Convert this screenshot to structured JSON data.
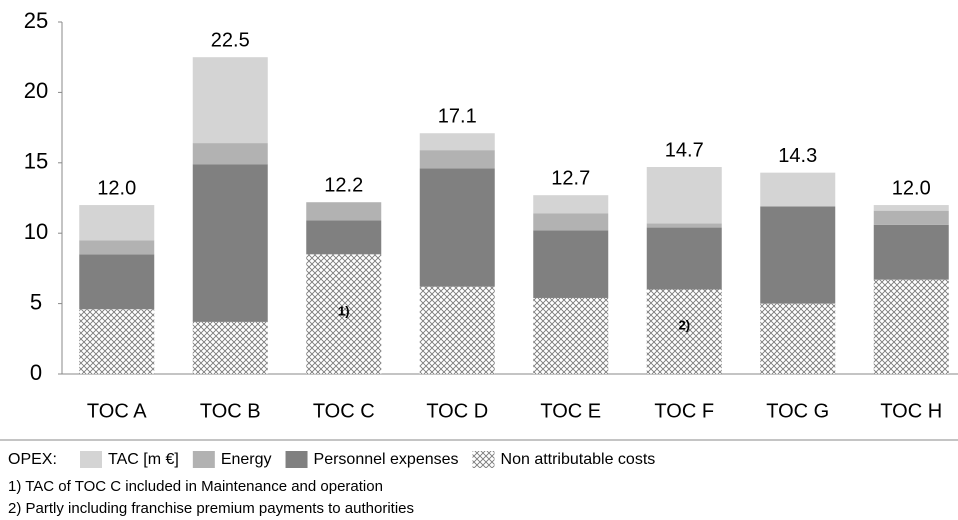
{
  "chart_data": {
    "type": "stacked_bar",
    "categories": [
      "TOC A",
      "TOC B",
      "TOC C",
      "TOC D",
      "TOC E",
      "TOC F",
      "TOC G",
      "TOC H"
    ],
    "series": [
      {
        "name": "Non attributable costs",
        "color": "hatch",
        "values": [
          4.6,
          3.7,
          8.5,
          6.2,
          5.4,
          6.0,
          5.0,
          6.7
        ]
      },
      {
        "name": "Personnel expenses",
        "color": "#808080",
        "values": [
          3.9,
          11.2,
          2.4,
          8.4,
          4.8,
          4.4,
          6.9,
          3.9
        ]
      },
      {
        "name": "Energy",
        "color": "#b2b2b2",
        "values": [
          1.0,
          1.5,
          1.3,
          1.3,
          1.2,
          0.3,
          0,
          1.0
        ]
      },
      {
        "name": "TAC [m €]",
        "color": "#d4d4d4",
        "values": [
          2.5,
          6.1,
          0,
          1.2,
          1.3,
          4.0,
          2.4,
          0.4
        ]
      }
    ],
    "totals": {
      "values": [
        12.0,
        22.5,
        12.2,
        17.1,
        12.7,
        14.7,
        14.3,
        12.0
      ],
      "value_labels": [
        "12.0",
        "22.5",
        "12.2",
        "17.1",
        "12.7",
        "14.7",
        "14.3",
        "12.0"
      ]
    },
    "ylim": [
      0,
      25
    ],
    "yticks": [
      0,
      5,
      10,
      15,
      20,
      25
    ],
    "grid": false,
    "legend_title": "OPEX:",
    "annotations": [
      "1)",
      "2)"
    ],
    "footnotes": [
      "1)  TAC of TOC C included in Maintenance and operation",
      "2)  Partly including franchise premium payments to authorities"
    ]
  }
}
